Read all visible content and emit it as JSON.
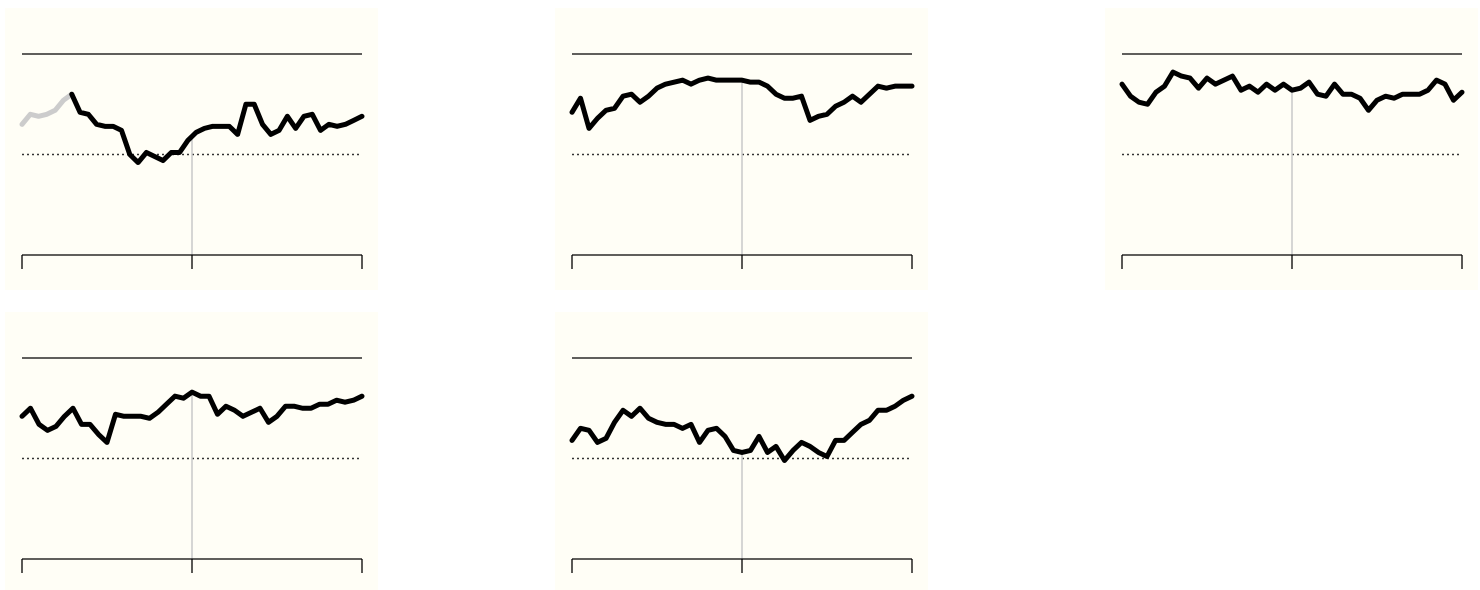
{
  "chart_data": [
    {
      "type": "line",
      "ylim": [
        -1,
        1
      ],
      "reference_line": 0,
      "grid": false,
      "highlight_color": "#000000",
      "muted_color": "#cccccc",
      "muted_points": 7,
      "values": [
        0.3,
        0.4,
        0.38,
        0.4,
        0.44,
        0.54,
        0.6,
        0.42,
        0.4,
        0.3,
        0.28,
        0.28,
        0.24,
        0.0,
        -0.08,
        0.02,
        -0.02,
        -0.06,
        0.02,
        0.02,
        0.14,
        0.22,
        0.26,
        0.28,
        0.28,
        0.28,
        0.2,
        0.5,
        0.5,
        0.3,
        0.2,
        0.24,
        0.38,
        0.26,
        0.38,
        0.4,
        0.24,
        0.3,
        0.28,
        0.3,
        0.34,
        0.38
      ]
    },
    {
      "type": "line",
      "ylim": [
        -1,
        1
      ],
      "reference_line": 0,
      "grid": false,
      "highlight_color": "#000000",
      "values": [
        0.42,
        0.56,
        0.26,
        0.36,
        0.44,
        0.46,
        0.58,
        0.6,
        0.52,
        0.58,
        0.66,
        0.7,
        0.72,
        0.74,
        0.7,
        0.74,
        0.76,
        0.74,
        0.74,
        0.74,
        0.74,
        0.72,
        0.72,
        0.68,
        0.6,
        0.56,
        0.56,
        0.58,
        0.34,
        0.38,
        0.4,
        0.48,
        0.52,
        0.58,
        0.52,
        0.6,
        0.68,
        0.66,
        0.68,
        0.68,
        0.68
      ]
    },
    {
      "type": "line",
      "ylim": [
        -1,
        1
      ],
      "reference_line": 0,
      "grid": false,
      "highlight_color": "#000000",
      "values": [
        0.7,
        0.58,
        0.52,
        0.5,
        0.62,
        0.68,
        0.82,
        0.78,
        0.76,
        0.66,
        0.76,
        0.7,
        0.74,
        0.78,
        0.64,
        0.68,
        0.62,
        0.7,
        0.64,
        0.7,
        0.64,
        0.66,
        0.72,
        0.6,
        0.58,
        0.7,
        0.6,
        0.6,
        0.56,
        0.44,
        0.54,
        0.58,
        0.56,
        0.6,
        0.6,
        0.6,
        0.64,
        0.74,
        0.7,
        0.54,
        0.62
      ]
    },
    {
      "type": "line",
      "ylim": [
        -1,
        1
      ],
      "reference_line": 0,
      "grid": false,
      "highlight_color": "#000000",
      "values": [
        0.42,
        0.5,
        0.34,
        0.28,
        0.32,
        0.42,
        0.5,
        0.34,
        0.34,
        0.24,
        0.16,
        0.44,
        0.42,
        0.42,
        0.42,
        0.4,
        0.46,
        0.54,
        0.62,
        0.6,
        0.66,
        0.62,
        0.62,
        0.44,
        0.52,
        0.48,
        0.42,
        0.46,
        0.5,
        0.36,
        0.42,
        0.52,
        0.52,
        0.5,
        0.5,
        0.54,
        0.54,
        0.58,
        0.56,
        0.58,
        0.62
      ]
    },
    {
      "type": "line",
      "ylim": [
        -1,
        1
      ],
      "reference_line": 0,
      "grid": false,
      "highlight_color": "#000000",
      "values": [
        0.18,
        0.3,
        0.28,
        0.16,
        0.2,
        0.36,
        0.48,
        0.42,
        0.5,
        0.4,
        0.36,
        0.34,
        0.34,
        0.3,
        0.34,
        0.16,
        0.28,
        0.3,
        0.22,
        0.08,
        0.06,
        0.08,
        0.22,
        0.06,
        0.12,
        -0.02,
        0.08,
        0.16,
        0.12,
        0.06,
        0.02,
        0.18,
        0.18,
        0.26,
        0.34,
        0.38,
        0.48,
        0.48,
        0.52,
        0.58,
        0.62
      ]
    }
  ],
  "colors": {
    "panel_background": "#fffef6",
    "axis": "#000000",
    "midline": "#c8c8c8"
  }
}
